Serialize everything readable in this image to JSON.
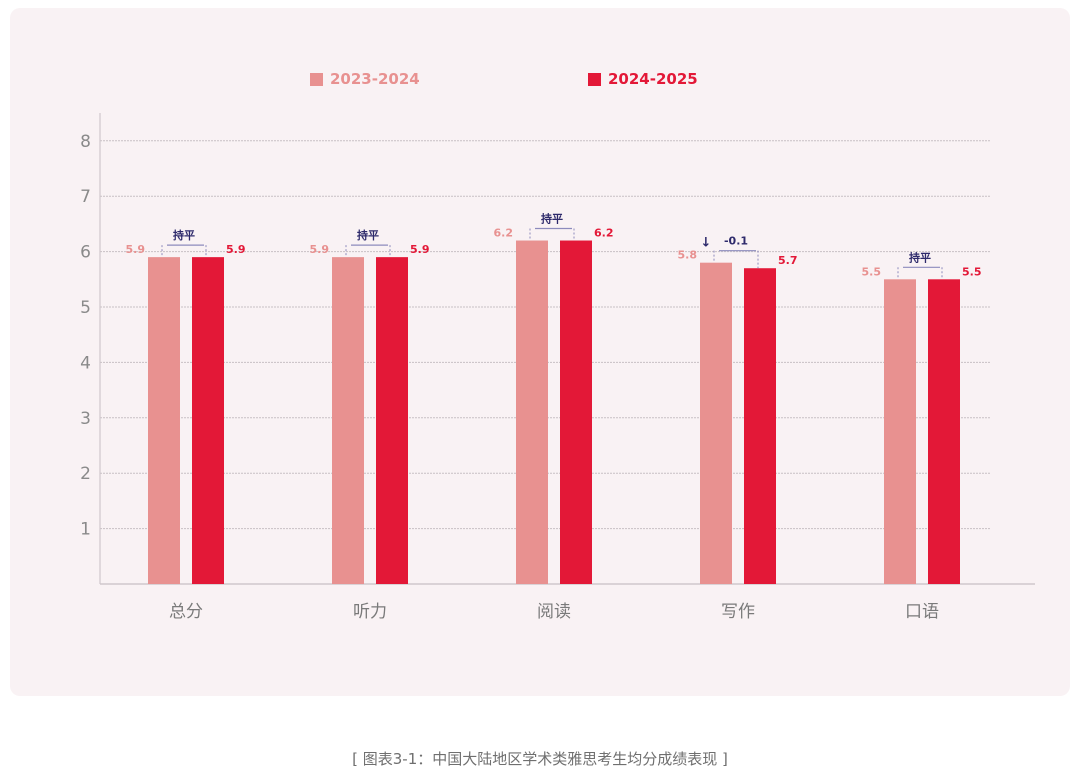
{
  "chart_data": {
    "type": "bar",
    "title": "[ 图表3-1：中国大陆地区学术类雅思考生均分成绩表现 ]",
    "xlabel": "",
    "ylabel": "",
    "ylim": [
      0,
      8
    ],
    "yticks": [
      1,
      2,
      3,
      4,
      5,
      6,
      7,
      8
    ],
    "grid": true,
    "legend_position": "top",
    "categories": [
      "总分",
      "听力",
      "阅读",
      "写作",
      "口语"
    ],
    "series": [
      {
        "name": "2023-2024",
        "color": "#e89190",
        "values": [
          5.9,
          5.9,
          6.2,
          5.8,
          5.5
        ]
      },
      {
        "name": "2024-2025",
        "color": "#e31837",
        "values": [
          5.9,
          5.9,
          6.2,
          5.7,
          5.5
        ]
      }
    ],
    "annotations": [
      {
        "category": "总分",
        "text": "持平",
        "arrow": ""
      },
      {
        "category": "听力",
        "text": "持平",
        "arrow": ""
      },
      {
        "category": "阅读",
        "text": "持平",
        "arrow": ""
      },
      {
        "category": "写作",
        "text": "-0.1",
        "arrow": "↓"
      },
      {
        "category": "口语",
        "text": "持平",
        "arrow": ""
      }
    ]
  },
  "legend": [
    {
      "label": "2023-2024",
      "color": "#e89190"
    },
    {
      "label": "2024-2025",
      "color": "#e31837"
    }
  ],
  "caption": "[ 图表3-1：中国大陆地区学术类雅思考生均分成绩表现 ]",
  "colors": {
    "panel_bg": "#f9f2f4",
    "annotation": "#2e2a6b",
    "axis_text": "#8a8a8a",
    "grid": "#c8c0c4"
  }
}
